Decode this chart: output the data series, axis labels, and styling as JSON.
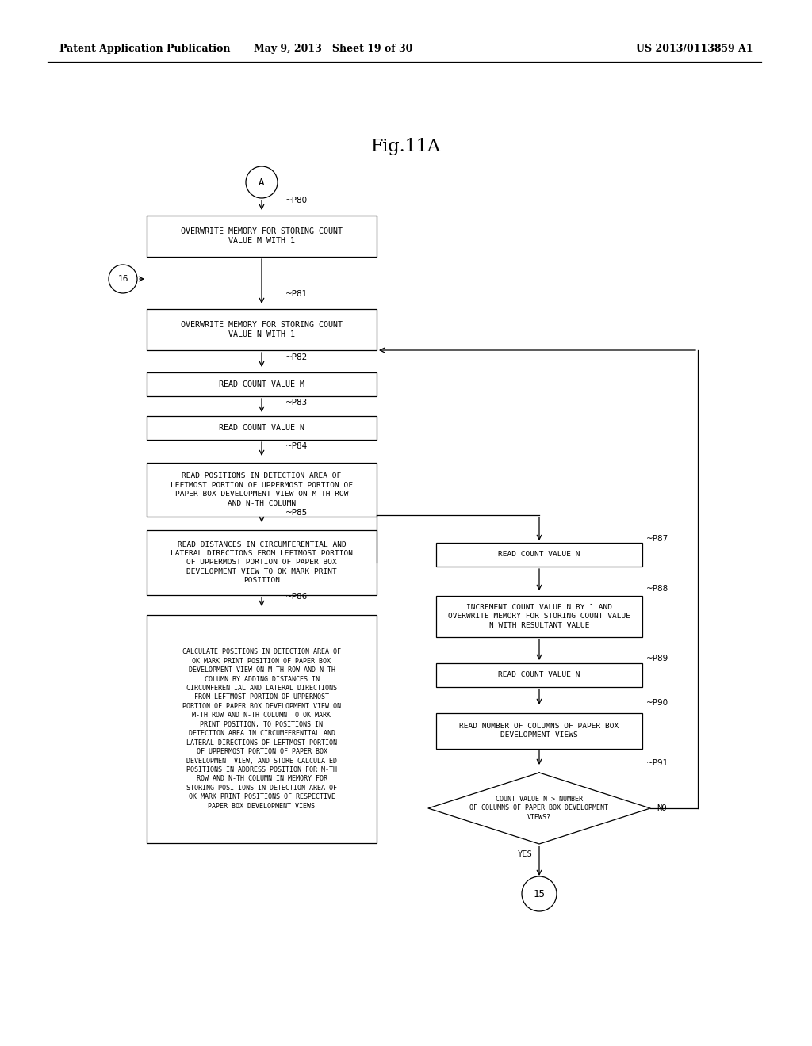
{
  "title": "Fig.11A",
  "header_left": "Patent Application Publication",
  "header_mid": "May 9, 2013   Sheet 19 of 30",
  "header_right": "US 2013/0113859 A1",
  "bg_color": "#ffffff"
}
